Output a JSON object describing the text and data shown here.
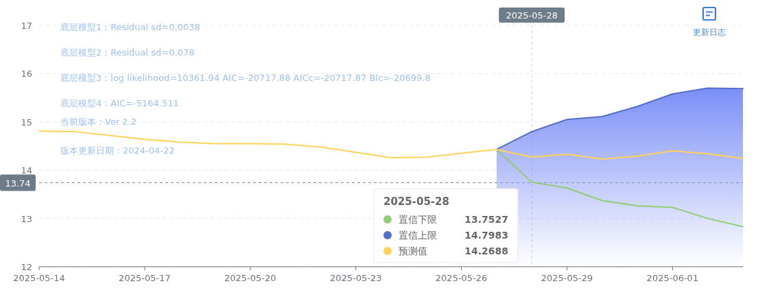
{
  "chart_data": {
    "type": "line",
    "annotations": [
      "底层模型1：Residual sd=0.0038",
      "底层模型2：Residual sd=0.078",
      "底层模型3：log likelihood=10361.94 AIC=-20717.88 AICc=-20717.87 BIc=-20699.8",
      "底层模型4：AIC=-5164.511",
      "当前版本：Ver 2.2",
      "版本更新日期：2024-04-22",
      "13.7527",
      "14.7983",
      "14.2688",
      "更新日志"
    ],
    "x": [
      "2025-05-14",
      "2025-05-15",
      "2025-05-16",
      "2025-05-17",
      "2025-05-18",
      "2025-05-19",
      "2025-05-20",
      "2025-05-21",
      "2025-05-22",
      "2025-05-23",
      "2025-05-24",
      "2025-05-25",
      "2025-05-26",
      "2025-05-27",
      "2025-05-28",
      "2025-05-29",
      "2025-05-30",
      "2025-05-31",
      "2025-06-01",
      "2025-06-02",
      "2025-06-03"
    ],
    "series": [
      {
        "name": "置信下限",
        "color": "#91cc75",
        "values": [
          null,
          null,
          null,
          null,
          null,
          null,
          null,
          null,
          null,
          null,
          null,
          null,
          null,
          14.43,
          13.7527,
          13.63,
          13.37,
          13.26,
          13.23,
          13.0,
          12.83
        ]
      },
      {
        "name": "置信上限",
        "type": "area",
        "color": "#5470c6",
        "values": [
          null,
          null,
          null,
          null,
          null,
          null,
          null,
          null,
          null,
          null,
          null,
          null,
          null,
          14.43,
          14.7983,
          15.05,
          15.11,
          15.32,
          15.58,
          15.7,
          15.69
        ]
      },
      {
        "name": "预测值",
        "color": "#fdd35a",
        "values": [
          14.81,
          14.8,
          14.72,
          14.64,
          14.58,
          14.55,
          14.55,
          14.54,
          14.48,
          14.37,
          14.26,
          14.27,
          14.35,
          14.43,
          14.2688,
          14.33,
          14.23,
          14.29,
          14.4,
          14.34,
          14.24
        ]
      }
    ],
    "xlim": [
      "2025-05-14",
      "2025-06-03"
    ],
    "xticks": [
      {
        "value": "2025-05-14",
        "label": "2025-05-14"
      },
      {
        "value": "2025-05-17",
        "label": "2025-05-17"
      },
      {
        "value": "2025-05-20",
        "label": "2025-05-20"
      },
      {
        "value": "2025-05-23",
        "label": "2025-05-23"
      },
      {
        "value": "2025-05-26",
        "label": "2025-05-26"
      },
      {
        "value": "2025-05-29",
        "label": "2025-05-29"
      },
      {
        "value": "2025-06-01",
        "label": "2025-06-01"
      }
    ],
    "ylim": [
      12,
      17
    ],
    "yticks": [
      12,
      13,
      14,
      15,
      16,
      17
    ],
    "grid": "y",
    "legend": "bottom",
    "legend_title": "2025-05-28",
    "marker": "none",
    "line_style": "solid",
    "ref_lines": [
      {
        "axis": "y",
        "value": 13.74,
        "label": "13.74",
        "line_style": "dashed",
        "color": "#888888"
      },
      {
        "axis": "x",
        "value": "2025-05-28",
        "label": "2025-05-28",
        "line_style": "dashed",
        "color": "#cccccc"
      }
    ]
  }
}
